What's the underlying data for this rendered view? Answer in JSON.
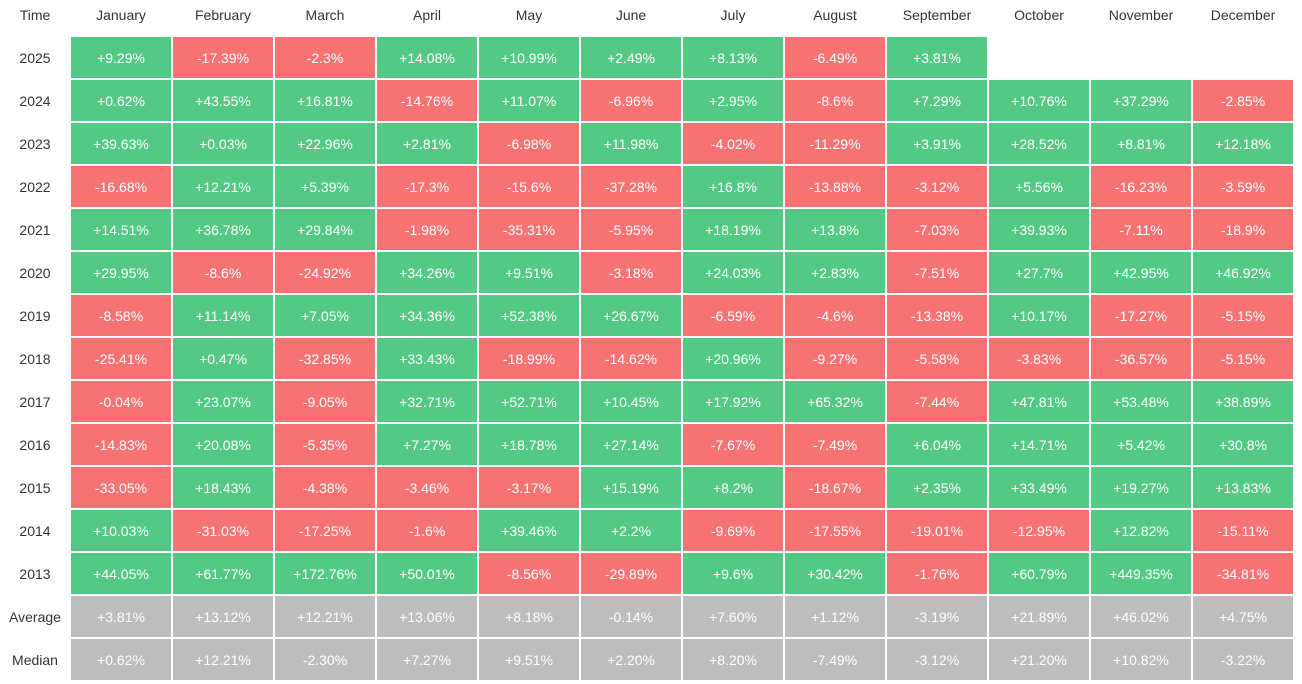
{
  "table": {
    "header": [
      "Time",
      "January",
      "February",
      "March",
      "April",
      "May",
      "June",
      "July",
      "August",
      "September",
      "October",
      "November",
      "December"
    ],
    "rows": [
      {
        "label": "2025",
        "cells": [
          "+9.29%",
          "-17.39%",
          "-2.3%",
          "+14.08%",
          "+10.99%",
          "+2.49%",
          "+8.13%",
          "-6.49%",
          "+3.81%"
        ]
      },
      {
        "label": "2024",
        "cells": [
          "+0.62%",
          "+43.55%",
          "+16.81%",
          "-14.76%",
          "+11.07%",
          "-6.96%",
          "+2.95%",
          "-8.6%",
          "+7.29%",
          "+10.76%",
          "+37.29%",
          "-2.85%"
        ]
      },
      {
        "label": "2023",
        "cells": [
          "+39.63%",
          "+0.03%",
          "+22.96%",
          "+2.81%",
          "-6.98%",
          "+11.98%",
          "-4.02%",
          "-11.29%",
          "+3.91%",
          "+28.52%",
          "+8.81%",
          "+12.18%"
        ]
      },
      {
        "label": "2022",
        "cells": [
          "-16.68%",
          "+12.21%",
          "+5.39%",
          "-17.3%",
          "-15.6%",
          "-37.28%",
          "+16.8%",
          "-13.88%",
          "-3.12%",
          "+5.56%",
          "-16.23%",
          "-3.59%"
        ]
      },
      {
        "label": "2021",
        "cells": [
          "+14.51%",
          "+36.78%",
          "+29.84%",
          "-1.98%",
          "-35.31%",
          "-5.95%",
          "+18.19%",
          "+13.8%",
          "-7.03%",
          "+39.93%",
          "-7.11%",
          "-18.9%"
        ]
      },
      {
        "label": "2020",
        "cells": [
          "+29.95%",
          "-8.6%",
          "-24.92%",
          "+34.26%",
          "+9.51%",
          "-3.18%",
          "+24.03%",
          "+2.83%",
          "-7.51%",
          "+27.7%",
          "+42.95%",
          "+46.92%"
        ]
      },
      {
        "label": "2019",
        "cells": [
          "-8.58%",
          "+11.14%",
          "+7.05%",
          "+34.36%",
          "+52.38%",
          "+26.67%",
          "-6.59%",
          "-4.6%",
          "-13.38%",
          "+10.17%",
          "-17.27%",
          "-5.15%"
        ]
      },
      {
        "label": "2018",
        "cells": [
          "-25.41%",
          "+0.47%",
          "-32.85%",
          "+33.43%",
          "-18.99%",
          "-14.62%",
          "+20.96%",
          "-9.27%",
          "-5.58%",
          "-3.83%",
          "-36.57%",
          "-5.15%"
        ]
      },
      {
        "label": "2017",
        "cells": [
          "-0.04%",
          "+23.07%",
          "-9.05%",
          "+32.71%",
          "+52.71%",
          "+10.45%",
          "+17.92%",
          "+65.32%",
          "-7.44%",
          "+47.81%",
          "+53.48%",
          "+38.89%"
        ]
      },
      {
        "label": "2016",
        "cells": [
          "-14.83%",
          "+20.08%",
          "-5.35%",
          "+7.27%",
          "+18.78%",
          "+27.14%",
          "-7.67%",
          "-7.49%",
          "+6.04%",
          "+14.71%",
          "+5.42%",
          "+30.8%"
        ]
      },
      {
        "label": "2015",
        "cells": [
          "-33.05%",
          "+18.43%",
          "-4.38%",
          "-3.46%",
          "-3.17%",
          "+15.19%",
          "+8.2%",
          "-18.67%",
          "+2.35%",
          "+33.49%",
          "+19.27%",
          "+13.83%"
        ]
      },
      {
        "label": "2014",
        "cells": [
          "+10.03%",
          "-31.03%",
          "-17.25%",
          "-1.6%",
          "+39.46%",
          "+2.2%",
          "-9.69%",
          "-17.55%",
          "-19.01%",
          "-12.95%",
          "+12.82%",
          "-15.11%"
        ]
      },
      {
        "label": "2013",
        "cells": [
          "+44.05%",
          "+61.77%",
          "+172.76%",
          "+50.01%",
          "-8.56%",
          "-29.89%",
          "+9.6%",
          "+30.42%",
          "-1.76%",
          "+60.79%",
          "+449.35%",
          "-34.81%"
        ]
      }
    ],
    "summary_rows": [
      {
        "label": "Average",
        "cells": [
          "+3.81%",
          "+13.12%",
          "+12.21%",
          "+13.06%",
          "+8.18%",
          "-0.14%",
          "+7.60%",
          "+1.12%",
          "-3.19%",
          "+21.89%",
          "+46.02%",
          "+4.75%"
        ]
      },
      {
        "label": "Median",
        "cells": [
          "+0.62%",
          "+12.21%",
          "-2.30%",
          "+7.27%",
          "+9.51%",
          "+2.20%",
          "+8.20%",
          "-7.49%",
          "-3.12%",
          "+21.20%",
          "+10.82%",
          "-3.22%"
        ]
      }
    ]
  }
}
